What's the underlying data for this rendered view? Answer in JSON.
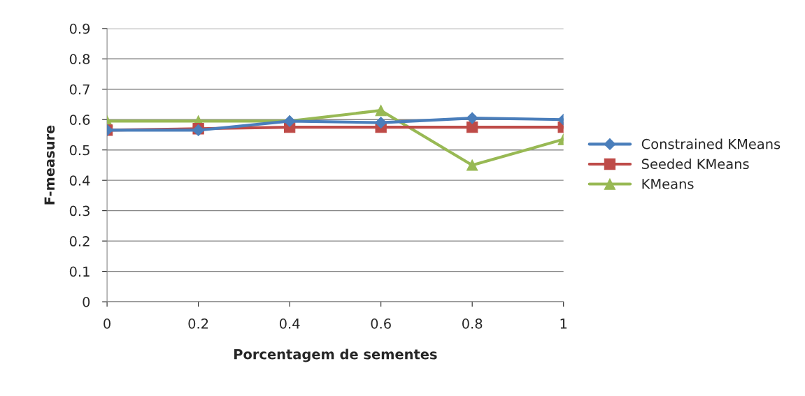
{
  "chart_data": {
    "type": "line",
    "xlabel": "Porcentagem de sementes",
    "ylabel": "F-measure",
    "x": [
      0,
      0.2,
      0.4,
      0.6,
      0.8,
      1
    ],
    "xlim": [
      0,
      1
    ],
    "xticks": [
      0,
      0.2,
      0.4,
      0.6,
      0.8,
      1
    ],
    "ylim": [
      0,
      0.9
    ],
    "yticks": [
      0,
      0.1,
      0.2,
      0.3,
      0.4,
      0.5,
      0.6,
      0.7,
      0.8,
      0.9
    ],
    "grid": "y",
    "legend": "right",
    "series": [
      {
        "name": "Constrained KMeans",
        "color": "#4a7ebb",
        "marker": "diamond",
        "values": [
          0.565,
          0.565,
          0.595,
          0.59,
          0.605,
          0.6
        ]
      },
      {
        "name": "Seeded KMeans",
        "color": "#be4b48",
        "marker": "square",
        "values": [
          0.565,
          0.57,
          0.575,
          0.575,
          0.575,
          0.575
        ]
      },
      {
        "name": "KMeans",
        "color": "#98b954",
        "marker": "triangle",
        "values": [
          0.595,
          0.595,
          0.595,
          0.63,
          0.45,
          0.535
        ]
      }
    ]
  }
}
